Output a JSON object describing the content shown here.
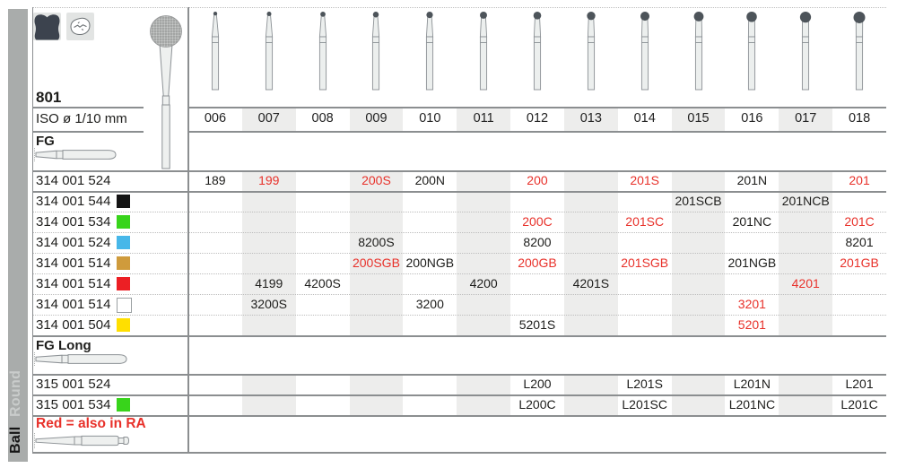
{
  "sidebar": {
    "category": "Ball",
    "subcategory": "Round"
  },
  "header": {
    "figure_number": "801",
    "iso_label": "ISO ø 1/10 mm",
    "sizes": [
      "006",
      "007",
      "008",
      "009",
      "010",
      "011",
      "012",
      "013",
      "014",
      "015",
      "016",
      "017",
      "018"
    ],
    "icons": [
      {
        "name": "molar-crown-icon"
      },
      {
        "name": "occlusal-surface-icon"
      }
    ]
  },
  "table": {
    "sections": [
      {
        "label": "FG",
        "shank_icon": "fg-shank-icon",
        "rows": [
          {
            "code": "314 001 524",
            "grit": null,
            "cells": [
              {
                "size": "006",
                "value": "189",
                "red": false
              },
              {
                "size": "007",
                "value": "199",
                "red": true
              },
              {
                "size": "009",
                "value": "200S",
                "red": true
              },
              {
                "size": "010",
                "value": "200N",
                "red": false
              },
              {
                "size": "012",
                "value": "200",
                "red": true
              },
              {
                "size": "014",
                "value": "201S",
                "red": true
              },
              {
                "size": "016",
                "value": "201N",
                "red": false
              },
              {
                "size": "018",
                "value": "201",
                "red": true
              }
            ]
          },
          {
            "code": "314 001 544",
            "grit": "black",
            "cells": [
              {
                "size": "015",
                "value": "201SCB",
                "red": false
              },
              {
                "size": "017",
                "value": "201NCB",
                "red": false
              }
            ]
          },
          {
            "code": "314 001 534",
            "grit": "green",
            "cells": [
              {
                "size": "012",
                "value": "200C",
                "red": true
              },
              {
                "size": "014",
                "value": "201SC",
                "red": true
              },
              {
                "size": "016",
                "value": "201NC",
                "red": false
              },
              {
                "size": "018",
                "value": "201C",
                "red": true
              }
            ]
          },
          {
            "code": "314 001 524",
            "grit": "blue",
            "cells": [
              {
                "size": "009",
                "value": "8200S",
                "red": false
              },
              {
                "size": "012",
                "value": "8200",
                "red": false
              },
              {
                "size": "018",
                "value": "8201",
                "red": false
              }
            ]
          },
          {
            "code": "314 001 514",
            "grit": "gold",
            "cells": [
              {
                "size": "009",
                "value": "200SGB",
                "red": true
              },
              {
                "size": "010",
                "value": "200NGB",
                "red": false
              },
              {
                "size": "012",
                "value": "200GB",
                "red": true
              },
              {
                "size": "014",
                "value": "201SGB",
                "red": true
              },
              {
                "size": "016",
                "value": "201NGB",
                "red": false
              },
              {
                "size": "018",
                "value": "201GB",
                "red": true
              }
            ]
          },
          {
            "code": "314 001 514",
            "grit": "red",
            "cells": [
              {
                "size": "007",
                "value": "4199",
                "red": false
              },
              {
                "size": "008",
                "value": "4200S",
                "red": false
              },
              {
                "size": "011",
                "value": "4200",
                "red": false
              },
              {
                "size": "013",
                "value": "4201S",
                "red": false
              },
              {
                "size": "017",
                "value": "4201",
                "red": true
              }
            ]
          },
          {
            "code": "314 001 514",
            "grit": "white",
            "cells": [
              {
                "size": "007",
                "value": "3200S",
                "red": false
              },
              {
                "size": "010",
                "value": "3200",
                "red": false
              },
              {
                "size": "016",
                "value": "3201",
                "red": true
              }
            ]
          },
          {
            "code": "314 001 504",
            "grit": "yellow",
            "cells": [
              {
                "size": "012",
                "value": "5201S",
                "red": false
              },
              {
                "size": "016",
                "value": "5201",
                "red": true
              }
            ]
          }
        ]
      },
      {
        "label": "FG Long",
        "shank_icon": "fg-long-shank-icon",
        "rows": [
          {
            "code": "315 001 524",
            "grit": null,
            "cells": [
              {
                "size": "012",
                "value": "L200",
                "red": false
              },
              {
                "size": "014",
                "value": "L201S",
                "red": false
              },
              {
                "size": "016",
                "value": "L201N",
                "red": false
              },
              {
                "size": "018",
                "value": "L201",
                "red": false
              }
            ]
          },
          {
            "code": "315 001 534",
            "grit": "green",
            "cells": [
              {
                "size": "012",
                "value": "L200C",
                "red": false
              },
              {
                "size": "014",
                "value": "L201SC",
                "red": false
              },
              {
                "size": "016",
                "value": "L201NC",
                "red": false
              },
              {
                "size": "018",
                "value": "L201C",
                "red": false
              }
            ]
          }
        ]
      }
    ]
  },
  "footnote": {
    "text": "Red = also in RA",
    "shank_icon": "ra-shank-icon"
  },
  "legend_colors": {
    "red_text": "#e8312a",
    "column_stripe": "#ededec",
    "grit": {
      "black": "#141414",
      "green": "#38d41b",
      "blue": "#47b7e9",
      "gold": "#cf9b3c",
      "red": "#ec1f24",
      "white": "#ffffff",
      "yellow": "#ffdf00"
    }
  }
}
